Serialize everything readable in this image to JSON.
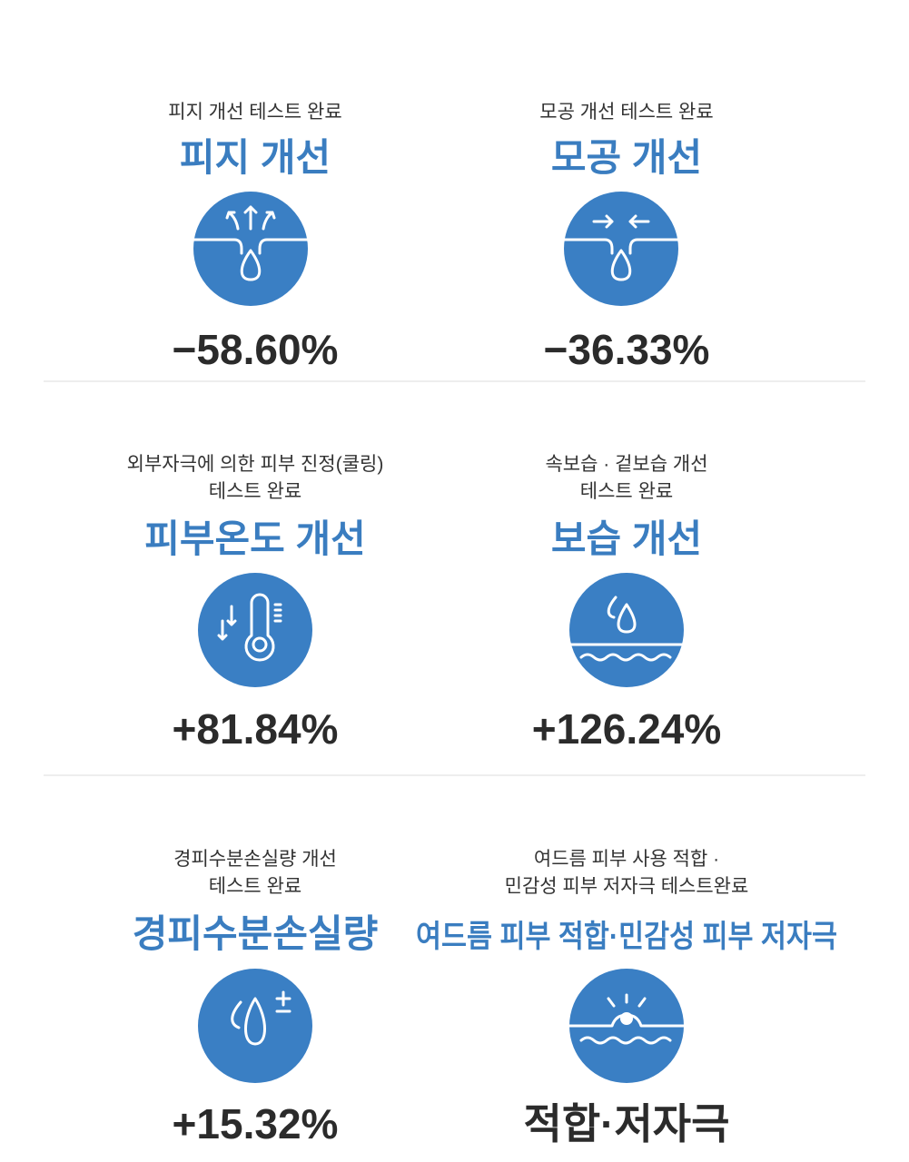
{
  "items": [
    {
      "subtitle": [
        "피지 개선 테스트 완료"
      ],
      "title": "피지 개선",
      "result": "−58.60%"
    },
    {
      "subtitle": [
        "모공 개선 테스트 완료"
      ],
      "title": "모공 개선",
      "result": "−36.33%"
    },
    {
      "subtitle": [
        "외부자극에 의한 피부 진정(쿨링)",
        "테스트 완료"
      ],
      "title": "피부온도 개선",
      "result": "+81.84%"
    },
    {
      "subtitle": [
        "속보습 · 겉보습 개선",
        "테스트 완료"
      ],
      "title": "보습 개선",
      "result": "+126.24%"
    },
    {
      "subtitle": [
        "경피수분손실량 개선",
        "테스트 완료"
      ],
      "title": "경피수분손실량",
      "result": "+15.32%"
    },
    {
      "subtitle": [
        "여드름 피부 사용 적합 ·",
        "민감성 피부 저자극 테스트완료"
      ],
      "title": "여드름 피부 적합·민감성 피부 저자극",
      "result": "적합·저자극"
    }
  ]
}
